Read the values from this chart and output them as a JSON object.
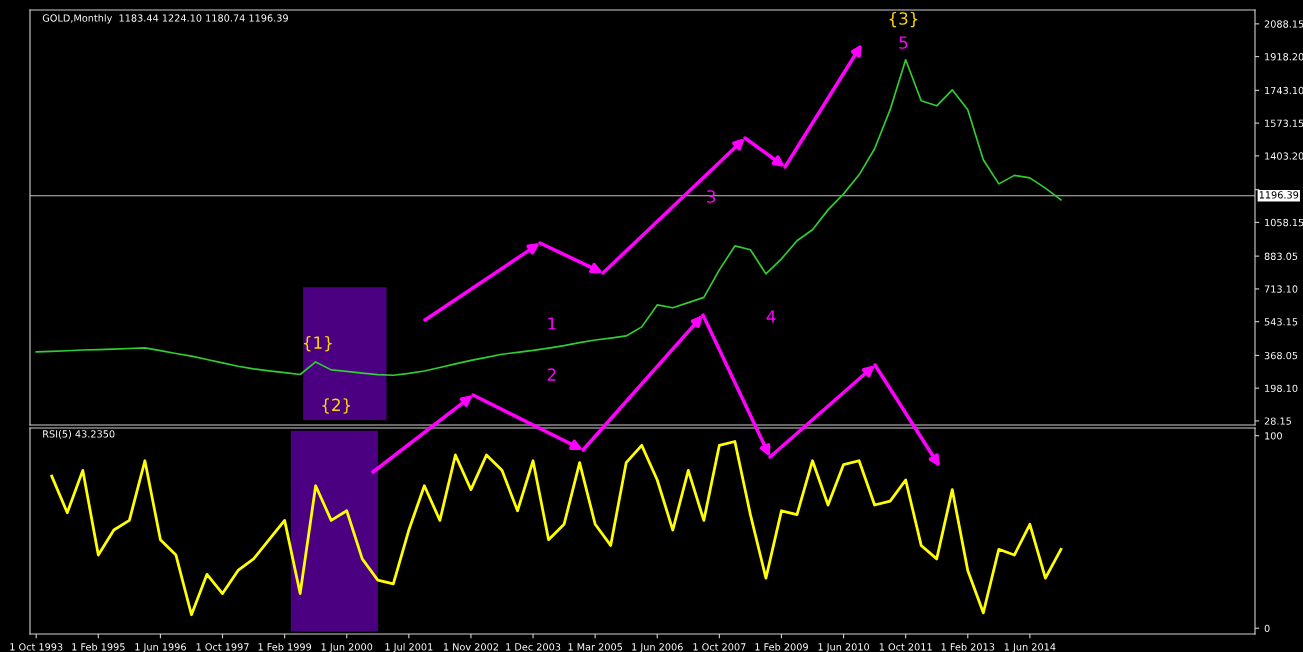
{
  "chart_data": [
    {
      "type": "line",
      "title": "GOLD,Monthly  1183.44 1224.10 1180.74 1196.39",
      "tick_labels": "y",
      "legend": false,
      "grid": false,
      "categories": [
        null,
        null,
        null,
        null,
        null,
        null,
        null,
        null,
        null,
        null,
        null,
        null,
        null,
        null,
        null,
        null,
        null,
        null,
        null,
        null,
        null,
        null,
        null,
        null,
        null,
        null,
        null,
        null,
        null,
        null,
        null,
        null,
        null,
        null,
        null,
        null,
        null,
        null,
        null,
        null,
        null,
        null,
        null,
        null,
        null,
        null,
        null,
        null,
        null,
        null,
        null,
        null,
        null,
        null,
        null,
        null,
        null,
        null,
        null,
        null,
        null,
        null,
        null,
        null,
        null,
        null,
        null,
        null,
        null,
        null,
        null,
        null,
        null,
        null,
        null,
        null,
        null,
        null,
        null
      ],
      "ylim": [
        7,
        2160
      ],
      "yticks": [
        28.15,
        {
          "value": 198.1,
          "label": "198.10"
        },
        368.05,
        543.15,
        {
          "value": 713.1,
          "label": "713.10"
        },
        883.05,
        1058.15,
        {
          "value": 1228.1,
          "label": null
        },
        {
          "value": 1403.2,
          "label": "1403.20"
        },
        1573.15,
        {
          "value": 1743.1,
          "label": "1743.10"
        },
        {
          "value": 1918.2,
          "label": "1918.20"
        },
        2088.15
      ],
      "series": [
        {
          "color": "#32cd32",
          "values": [
            386,
            389,
            392,
            396,
            398,
            401,
            404,
            407,
            393,
            378,
            364,
            347,
            329,
            312,
            298,
            288,
            279,
            269,
            334,
            293,
            285,
            276,
            268,
            265,
            275,
            287,
            305,
            324,
            342,
            358,
            374,
            384,
            394,
            406,
            419,
            434,
            448,
            458,
            469,
            516,
            630,
            615,
            642,
            669,
            812,
            936,
            916,
            791,
            869,
            963,
            1020,
            1123,
            1206,
            1305,
            1440,
            1643,
            1902,
            1689,
            1663,
            1746,
            1642,
            1383,
            1258,
            1302,
            1289,
            1236,
            1175,
            null,
            null,
            null,
            null,
            null,
            null,
            null,
            null,
            null,
            null,
            null,
            null
          ]
        }
      ],
      "ref_lines": [
        {
          "axis": "y",
          "value": 1196.39,
          "label": "1196.39",
          "color": "#c0c0c0"
        }
      ],
      "annotations": [
        "{1}",
        "{2}",
        "{3}",
        "1",
        "2",
        "3",
        "4",
        "5"
      ]
    },
    {
      "type": "line",
      "title": "RSI(5) 43.2350",
      "legend": false,
      "grid": false,
      "categories": [
        "1 Oct 1993",
        null,
        null,
        null,
        "1 Feb 1995",
        null,
        null,
        null,
        "1 Jun 1996",
        null,
        null,
        null,
        "1 Oct 1997",
        null,
        null,
        null,
        "1 Feb 1999",
        null,
        null,
        null,
        "1 Jun 2000",
        null,
        null,
        null,
        "1 Jul 2001",
        null,
        null,
        null,
        "1 Nov 2002",
        null,
        null,
        null,
        "1 Dec 2003",
        null,
        null,
        null,
        "1 Mar 2005",
        null,
        null,
        null,
        "1 Jun 2006",
        null,
        null,
        null,
        "1 Oct 2007",
        null,
        null,
        null,
        "1 Feb 2009",
        null,
        null,
        null,
        "1 Jun 2010",
        null,
        null,
        null,
        "1 Oct 2011",
        null,
        null,
        null,
        "1 Feb 2013",
        null,
        null,
        null,
        "1 Jun 2014",
        null,
        null,
        null,
        null,
        null,
        null,
        null,
        null,
        null,
        null,
        null,
        null,
        null,
        null
      ],
      "ylim": [
        -3,
        104
      ],
      "yticks": [
        0,
        100
      ],
      "series": [
        {
          "color": "#ffff00",
          "values": [
            null,
            79,
            60,
            82,
            38,
            51,
            56,
            87,
            46,
            38,
            7,
            28,
            18,
            30,
            36,
            46,
            56,
            18,
            74,
            56,
            61,
            36,
            25,
            23,
            51,
            74,
            56,
            90,
            72,
            90,
            82,
            61,
            87,
            46,
            54,
            86,
            54,
            43,
            86,
            95,
            77,
            51,
            82,
            56,
            95,
            97,
            59,
            26,
            61,
            59,
            87,
            64,
            85,
            87,
            64,
            66,
            77,
            43,
            36,
            72,
            30,
            8,
            41,
            38,
            54,
            26,
            41,
            null,
            null,
            null,
            null,
            null,
            null,
            null,
            null,
            null,
            null,
            null,
            null
          ]
        }
      ]
    }
  ]
}
